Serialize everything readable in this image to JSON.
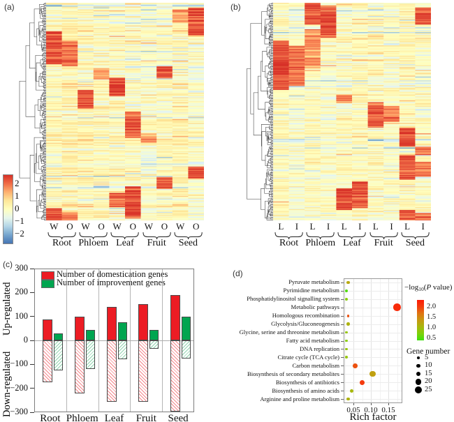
{
  "figure": {
    "panel_labels": {
      "a": "(a)",
      "b": "(b)",
      "c": "(c)",
      "d": "(d)"
    }
  },
  "chart_data": [
    {
      "panel": "a",
      "type": "heatmap",
      "columns": [
        "W",
        "O",
        "W",
        "O",
        "W",
        "O",
        "W",
        "O",
        "W",
        "O"
      ],
      "pair_labels": [
        "W",
        "O"
      ],
      "groups": [
        "Root",
        "Phloem",
        "Leaf",
        "Fruit",
        "Seed"
      ],
      "colorbar_ticks": [
        "2",
        "1",
        "0",
        "−1",
        "−2"
      ],
      "value_range": [
        -2.6,
        2.6
      ],
      "n_rows": 230,
      "seed": 11,
      "hotspots": [
        [
          9,
          0.02,
          0.15,
          2.3
        ],
        [
          8,
          0.03,
          0.09,
          1.4
        ],
        [
          0,
          0.13,
          0.28,
          2.3
        ],
        [
          1,
          0.17,
          0.29,
          2.0
        ],
        [
          7,
          0.29,
          0.345,
          2.2
        ],
        [
          4,
          0.34,
          0.43,
          2.3
        ],
        [
          2,
          0.4,
          0.485,
          2.3
        ],
        [
          3,
          0.3,
          0.35,
          1.5
        ],
        [
          5,
          0.5,
          0.62,
          2.1
        ],
        [
          6,
          0.6,
          0.64,
          1.4
        ],
        [
          9,
          0.75,
          0.805,
          2.3
        ],
        [
          7,
          0.8,
          0.855,
          2.1
        ],
        [
          5,
          0.84,
          0.99,
          2.4
        ],
        [
          4,
          0.87,
          0.935,
          2.0
        ],
        [
          0,
          0.94,
          1.0,
          2.2
        ],
        [
          1,
          0.96,
          1.0,
          1.8
        ]
      ]
    },
    {
      "panel": "b",
      "type": "heatmap",
      "columns": [
        "L",
        "I",
        "L",
        "I",
        "L",
        "I",
        "L",
        "I",
        "L",
        "I"
      ],
      "pair_labels": [
        "L",
        "I"
      ],
      "groups": [
        "Root",
        "Phloem",
        "Leaf",
        "Fruit",
        "Seed"
      ],
      "value_range": [
        -2.6,
        2.6
      ],
      "n_rows": 230,
      "seed": 23,
      "hotspots": [
        [
          2,
          0.0,
          0.1,
          2.2
        ],
        [
          3,
          0.01,
          0.16,
          2.35
        ],
        [
          2,
          0.12,
          0.3,
          1.6
        ],
        [
          9,
          0.02,
          0.1,
          2.2
        ],
        [
          0,
          0.17,
          0.4,
          2.3
        ],
        [
          1,
          0.2,
          0.38,
          2.0
        ],
        [
          0,
          0.27,
          0.33,
          2.5
        ],
        [
          4,
          0.42,
          0.46,
          1.8
        ],
        [
          6,
          0.455,
          0.57,
          2.1
        ],
        [
          7,
          0.47,
          0.545,
          1.9
        ],
        [
          8,
          0.57,
          0.66,
          2.4
        ],
        [
          9,
          0.66,
          0.7,
          1.9
        ],
        [
          8,
          0.7,
          0.81,
          2.2
        ],
        [
          9,
          0.73,
          0.8,
          1.9
        ],
        [
          4,
          0.85,
          0.95,
          2.4
        ],
        [
          5,
          0.82,
          0.94,
          2.2
        ],
        [
          8,
          0.95,
          1.0,
          2.2
        ],
        [
          9,
          0.965,
          1.0,
          2.0
        ]
      ]
    },
    {
      "panel": "c",
      "type": "bar",
      "categories": [
        "Root",
        "Phloem",
        "Leaf",
        "Fruit",
        "Seed"
      ],
      "series": [
        {
          "name": "Number of domestication genes",
          "color": "#ec1c24",
          "up": [
            88,
            100,
            140,
            152,
            188
          ],
          "down": [
            -175,
            -222,
            -255,
            -255,
            -298
          ]
        },
        {
          "name": "Number of improvement genes",
          "color": "#00a550",
          "up": [
            30,
            43,
            75,
            43,
            100
          ],
          "down": [
            -125,
            -120,
            -78,
            -35,
            -75
          ]
        }
      ],
      "ylim": [
        -300,
        300
      ],
      "yticks": [
        "300",
        "200",
        "100",
        "0",
        "−100",
        "−200",
        "−300"
      ],
      "ylabel_up": "Up-regulated",
      "ylabel_down": "Down-regulated"
    },
    {
      "panel": "d",
      "type": "scatter",
      "xlabel": "Rich factor",
      "xticks": [
        "0.05",
        "0.10",
        "0.15"
      ],
      "xlim": [
        0.022,
        0.19
      ],
      "pathways": [
        {
          "name": "Pyruvate metabolism",
          "rich_factor": 0.035,
          "gene_number": 8,
          "neg_log10_p": 1.2
        },
        {
          "name": "Pyrimidine metabolism",
          "rich_factor": 0.03,
          "gene_number": 6,
          "neg_log10_p": 0.5
        },
        {
          "name": "Phosphatidylinositol signalling system",
          "rich_factor": 0.03,
          "gene_number": 6,
          "neg_log10_p": 0.8
        },
        {
          "name": "Metabolic pathways",
          "rich_factor": 0.175,
          "gene_number": 27,
          "neg_log10_p": 2.2
        },
        {
          "name": "Homologous recombination",
          "rich_factor": 0.035,
          "gene_number": 5,
          "neg_log10_p": 1.9
        },
        {
          "name": "Glycolysis/Gluconeogenesis",
          "rich_factor": 0.035,
          "gene_number": 8,
          "neg_log10_p": 1.1
        },
        {
          "name": "Glycine, serine and threonine metabolism",
          "rich_factor": 0.03,
          "gene_number": 5,
          "neg_log10_p": 0.9
        },
        {
          "name": "Fatty acid metabolism",
          "rich_factor": 0.03,
          "gene_number": 5,
          "neg_log10_p": 0.8
        },
        {
          "name": "DNA replication",
          "rich_factor": 0.03,
          "gene_number": 5,
          "neg_log10_p": 0.9
        },
        {
          "name": "Citrate cycle (TCA cycle)",
          "rich_factor": 0.03,
          "gene_number": 5,
          "neg_log10_p": 0.9
        },
        {
          "name": "Carbon metabolism",
          "rich_factor": 0.055,
          "gene_number": 14,
          "neg_log10_p": 1.9
        },
        {
          "name": "Biosynthesis of secondary metabolites",
          "rich_factor": 0.105,
          "gene_number": 20,
          "neg_log10_p": 1.3
        },
        {
          "name": "Biosynthesis of antibiotics",
          "rich_factor": 0.075,
          "gene_number": 15,
          "neg_log10_p": 2.05
        },
        {
          "name": "Biosynthesis of amino acids",
          "rich_factor": 0.045,
          "gene_number": 9,
          "neg_log10_p": 1.05
        },
        {
          "name": "Arginine and proline metabolism",
          "rich_factor": 0.035,
          "gene_number": 6,
          "neg_log10_p": 1.1
        }
      ],
      "color_legend": {
        "title_pre": "−log",
        "title_sub": "10",
        "title_open": "(",
        "title_p": "P",
        "title_rest": " value)",
        "ticks": [
          "2.0",
          "1.5",
          "1.0",
          "0.5"
        ],
        "score_top": 2.35,
        "score_bottom": 0.4
      },
      "size_legend": {
        "title": "Gene number",
        "values": [
          5,
          10,
          15,
          20,
          25
        ]
      }
    }
  ]
}
